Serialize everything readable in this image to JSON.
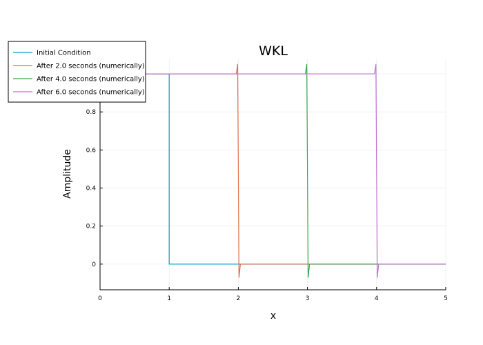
{
  "chart_data": {
    "type": "line",
    "title": "WKL",
    "xlabel": "x",
    "ylabel": "Amplitude",
    "xlim": [
      0,
      5
    ],
    "ylim": [
      -0.135,
      1.08
    ],
    "x_ticks": [
      0,
      1,
      2,
      3,
      4,
      5
    ],
    "x_tick_labels": [
      "0",
      "1",
      "2",
      "3",
      "4",
      "5"
    ],
    "y_ticks": [
      0,
      0.2,
      0.4,
      0.6,
      0.8
    ],
    "y_tick_labels": [
      "0",
      "0.2",
      "0.4",
      "0.6",
      "0.8"
    ],
    "grid": true,
    "legend_position": "top-left",
    "series": [
      {
        "name": "Initial Condition",
        "color": "#009AC8",
        "x": [
          0,
          1.0,
          1.0,
          5
        ],
        "y": [
          1,
          1,
          0,
          0
        ]
      },
      {
        "name": "After 2.0 seconds (numerically)",
        "color": "#E26F46",
        "x": [
          0,
          1.97,
          1.99,
          2.0,
          2.01,
          2.03,
          5
        ],
        "y": [
          1,
          1,
          1.05,
          0.5,
          -0.07,
          0,
          0
        ]
      },
      {
        "name": "After 4.0 seconds (numerically)",
        "color": "#3DA44E",
        "x": [
          0,
          2.97,
          2.99,
          3.0,
          3.01,
          3.03,
          5
        ],
        "y": [
          1,
          1,
          1.05,
          0.5,
          -0.07,
          0,
          0
        ]
      },
      {
        "name": "After 6.0 seconds (numerically)",
        "color": "#C271D2",
        "x": [
          0,
          3.97,
          3.99,
          4.0,
          4.01,
          4.03,
          5
        ],
        "y": [
          1,
          1,
          1.05,
          0.5,
          -0.07,
          0,
          0
        ]
      }
    ]
  }
}
